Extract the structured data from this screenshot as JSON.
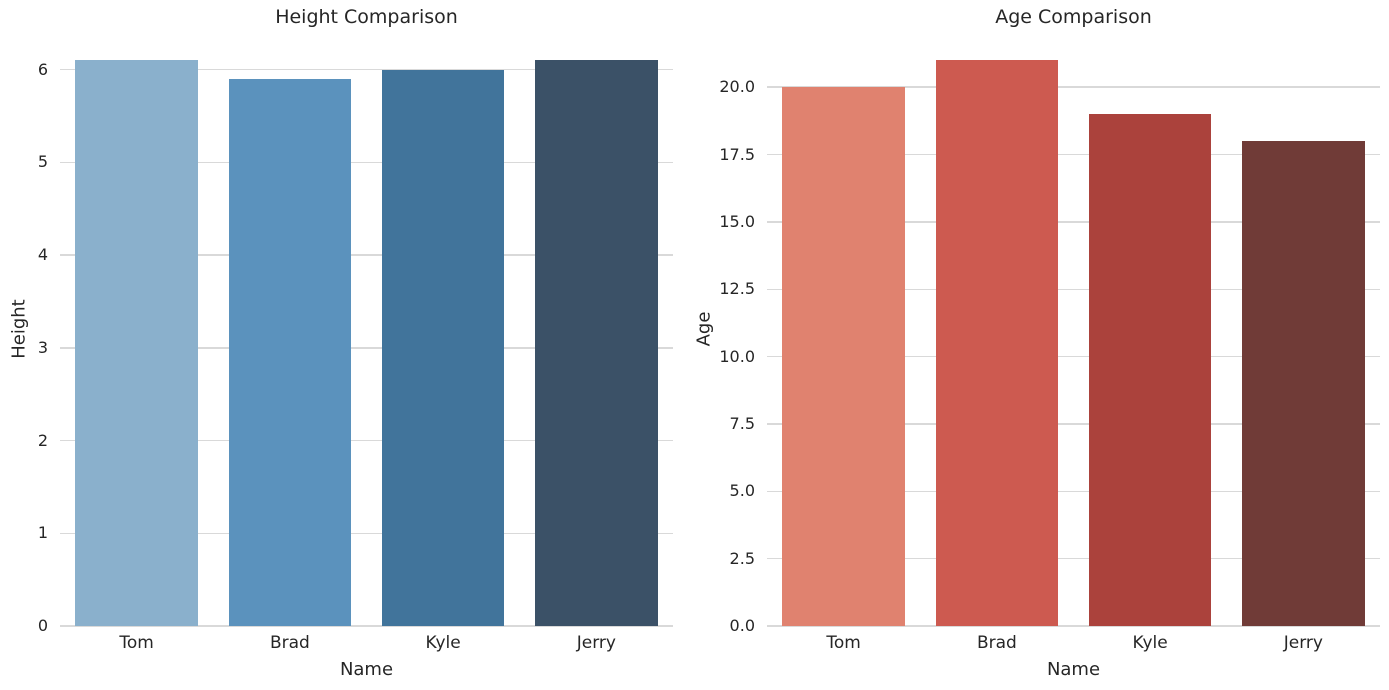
{
  "figure": {
    "background_color": "#ffffff",
    "text_color": "#262626",
    "grid_color": "#d9d9d9"
  },
  "chart_data": [
    {
      "type": "bar",
      "title": "Height Comparison",
      "xlabel": "Name",
      "ylabel": "Height",
      "categories": [
        "Tom",
        "Brad",
        "Kyle",
        "Jerry"
      ],
      "values": [
        6.1,
        5.9,
        6.0,
        6.1
      ],
      "ylim": [
        0,
        6.405
      ],
      "yticks": [
        0,
        1,
        2,
        3,
        4,
        5,
        6
      ],
      "ytick_labels": [
        "0",
        "1",
        "2",
        "3",
        "4",
        "5",
        "6"
      ],
      "bar_colors": [
        "#8ab0cc",
        "#5b92bd",
        "#41749b",
        "#3b5167"
      ],
      "grid": true,
      "legend": null
    },
    {
      "type": "bar",
      "title": "Age Comparison",
      "xlabel": "Name",
      "ylabel": "Age",
      "categories": [
        "Tom",
        "Brad",
        "Kyle",
        "Jerry"
      ],
      "values": [
        20,
        21,
        19,
        18
      ],
      "ylim": [
        0,
        22.05
      ],
      "yticks": [
        0,
        2.5,
        5,
        7.5,
        10,
        12.5,
        15,
        17.5,
        20
      ],
      "ytick_labels": [
        "0.0",
        "2.5",
        "5.0",
        "7.5",
        "10.0",
        "12.5",
        "15.0",
        "17.5",
        "20.0"
      ],
      "bar_colors": [
        "#e0826f",
        "#cd5a50",
        "#ab423c",
        "#703b37"
      ],
      "grid": true,
      "legend": null
    }
  ]
}
